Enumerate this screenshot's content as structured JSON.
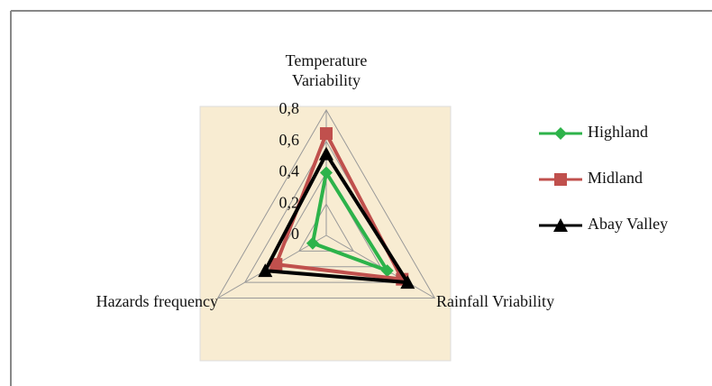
{
  "chart_data": {
    "type": "radar",
    "categories": [
      "Temperature Variability",
      "Rainfall Vriability",
      "Hazards frequency"
    ],
    "series": [
      {
        "name": "Highland",
        "color": "#2db34a",
        "marker": "diamond",
        "values": [
          0.4,
          0.45,
          0.1
        ]
      },
      {
        "name": "Midland",
        "color": "#c0504d",
        "marker": "square",
        "values": [
          0.65,
          0.56,
          0.37
        ]
      },
      {
        "name": "Abay Valley",
        "color": "#000000",
        "marker": "triangle",
        "values": [
          0.52,
          0.6,
          0.45
        ]
      }
    ],
    "rlim": [
      0,
      0.8
    ],
    "rticks": [
      {
        "value": 0,
        "label": "0"
      },
      {
        "value": 0.2,
        "label": "0,2"
      },
      {
        "value": 0.4,
        "label": "0,4"
      },
      {
        "value": 0.6,
        "label": "0,6"
      },
      {
        "value": 0.8,
        "label": "0,8"
      }
    ],
    "grid": true,
    "legend": "right"
  }
}
